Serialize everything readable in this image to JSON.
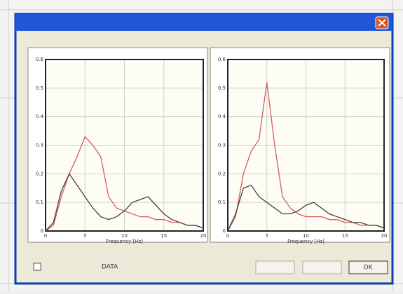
{
  "window": {
    "checkbox_label": "DATA",
    "ok_button": "OK"
  },
  "chart_data": [
    {
      "type": "line",
      "x_label": "Frequency [Hz]",
      "x": [
        0,
        1,
        2,
        3,
        4,
        5,
        6,
        7,
        8,
        9,
        10,
        11,
        12,
        13,
        14,
        15,
        16,
        17,
        18,
        19,
        20
      ],
      "series": [
        {
          "color": "#d0605a",
          "values": [
            0,
            0.02,
            0.12,
            0.2,
            0.26,
            0.33,
            0.3,
            0.26,
            0.12,
            0.08,
            0.07,
            0.06,
            0.05,
            0.05,
            0.04,
            0.04,
            0.03,
            0.03,
            0.02,
            0.02,
            0.01
          ]
        },
        {
          "color": "#4a4040",
          "values": [
            0,
            0.03,
            0.14,
            0.2,
            0.16,
            0.12,
            0.08,
            0.05,
            0.04,
            0.05,
            0.07,
            0.1,
            0.11,
            0.12,
            0.09,
            0.06,
            0.04,
            0.03,
            0.02,
            0.02,
            0.01
          ]
        }
      ],
      "xlim": [
        0,
        20
      ],
      "xticks": [
        0,
        5,
        10,
        15,
        20
      ],
      "ylim": [
        0,
        0.6
      ],
      "yticks": [
        0,
        0.1,
        0.2,
        0.3,
        0.4,
        0.5,
        0.6
      ],
      "grid": true
    },
    {
      "type": "line",
      "x_label": "Frequency [Hz]",
      "x": [
        0,
        1,
        2,
        3,
        4,
        5,
        6,
        7,
        8,
        9,
        10,
        11,
        12,
        13,
        14,
        15,
        16,
        17,
        18,
        19,
        20
      ],
      "series": [
        {
          "color": "#d0605a",
          "values": [
            0,
            0.05,
            0.2,
            0.28,
            0.32,
            0.52,
            0.3,
            0.12,
            0.08,
            0.06,
            0.05,
            0.05,
            0.05,
            0.04,
            0.04,
            0.03,
            0.03,
            0.02,
            0.02,
            0.02,
            0.01
          ]
        },
        {
          "color": "#4a4040",
          "values": [
            0,
            0.06,
            0.15,
            0.16,
            0.12,
            0.1,
            0.08,
            0.06,
            0.06,
            0.07,
            0.09,
            0.1,
            0.08,
            0.06,
            0.05,
            0.04,
            0.03,
            0.03,
            0.02,
            0.02,
            0.01
          ]
        }
      ],
      "xlim": [
        0,
        20
      ],
      "xticks": [
        0,
        5,
        10,
        15,
        20
      ],
      "ylim": [
        0,
        0.6
      ],
      "yticks": [
        0,
        0.1,
        0.2,
        0.3,
        0.4,
        0.5,
        0.6
      ],
      "grid": true
    }
  ]
}
